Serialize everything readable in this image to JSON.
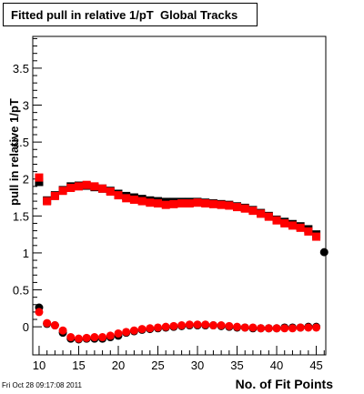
{
  "title": "Fitted pull in relative 1/pT  Global Tracks",
  "timestamp": "Fri Oct 28 09:17:08 2011",
  "chart_data": {
    "type": "scatter",
    "title": "Fitted pull in relative 1/pT  Global Tracks",
    "xlabel": "No. of Fit Points",
    "ylabel": "pull in relative 1/pT",
    "xlim": [
      9.2,
      46.2
    ],
    "ylim": [
      -0.38,
      3.93
    ],
    "x_ticks": [
      10,
      15,
      20,
      25,
      30,
      35,
      40,
      45
    ],
    "y_ticks": [
      0,
      0.5,
      1,
      1.5,
      2,
      2.5,
      3,
      3.5
    ],
    "y_tick_labels": [
      "0",
      "0.5",
      "1",
      "1.5",
      "2",
      "2.5",
      "3",
      "3.5"
    ],
    "grid": false,
    "series": [
      {
        "marker": "square",
        "color": "#000000",
        "x": [
          10,
          11,
          12,
          13,
          14,
          15,
          16,
          17,
          18,
          19,
          20,
          21,
          22,
          23,
          24,
          25,
          26,
          27,
          28,
          29,
          30,
          31,
          32,
          33,
          34,
          35,
          36,
          37,
          38,
          39,
          40,
          41,
          42,
          43,
          44,
          45
        ],
        "values": [
          1.96,
          1.71,
          1.78,
          1.85,
          1.9,
          1.91,
          1.91,
          1.89,
          1.87,
          1.84,
          1.8,
          1.77,
          1.75,
          1.73,
          1.71,
          1.7,
          1.69,
          1.69,
          1.69,
          1.69,
          1.69,
          1.68,
          1.67,
          1.66,
          1.65,
          1.63,
          1.61,
          1.58,
          1.54,
          1.5,
          1.45,
          1.42,
          1.39,
          1.36,
          1.32,
          1.25
        ]
      },
      {
        "marker": "square",
        "color": "#ff0000",
        "x": [
          10,
          11,
          12,
          13,
          14,
          15,
          16,
          17,
          18,
          19,
          20,
          21,
          22,
          23,
          24,
          25,
          26,
          27,
          28,
          29,
          30,
          31,
          32,
          33,
          34,
          35,
          36,
          37,
          38,
          39,
          40,
          41,
          42,
          43,
          44,
          45
        ],
        "values": [
          2.02,
          1.7,
          1.77,
          1.84,
          1.88,
          1.9,
          1.92,
          1.9,
          1.87,
          1.83,
          1.78,
          1.74,
          1.72,
          1.7,
          1.68,
          1.67,
          1.65,
          1.66,
          1.67,
          1.67,
          1.68,
          1.67,
          1.66,
          1.65,
          1.64,
          1.62,
          1.6,
          1.57,
          1.53,
          1.49,
          1.44,
          1.4,
          1.37,
          1.34,
          1.29,
          1.22
        ]
      },
      {
        "marker": "circle",
        "color": "#000000",
        "x": [
          10,
          11,
          12,
          13,
          14,
          15,
          16,
          17,
          18,
          19,
          20,
          21,
          22,
          23,
          24,
          25,
          26,
          27,
          28,
          29,
          30,
          31,
          32,
          33,
          34,
          35,
          36,
          37,
          38,
          39,
          40,
          41,
          42,
          43,
          44,
          45,
          46
        ],
        "values": [
          0.26,
          0.04,
          0.02,
          -0.08,
          -0.16,
          -0.17,
          -0.16,
          -0.16,
          -0.16,
          -0.14,
          -0.12,
          -0.08,
          -0.06,
          -0.04,
          -0.03,
          -0.02,
          -0.01,
          0.0,
          0.01,
          0.02,
          0.02,
          0.02,
          0.02,
          0.01,
          0.0,
          -0.01,
          -0.01,
          -0.02,
          -0.02,
          -0.02,
          -0.02,
          -0.01,
          -0.01,
          -0.01,
          0.0,
          0.0,
          1.01
        ]
      },
      {
        "marker": "circle",
        "color": "#ff0000",
        "x": [
          10,
          11,
          12,
          13,
          14,
          15,
          16,
          17,
          18,
          19,
          20,
          21,
          22,
          23,
          24,
          25,
          26,
          27,
          28,
          29,
          30,
          31,
          32,
          33,
          34,
          35,
          36,
          37,
          38,
          39,
          40,
          41,
          42,
          43,
          44,
          45
        ],
        "values": [
          0.2,
          0.05,
          0.02,
          -0.05,
          -0.14,
          -0.16,
          -0.15,
          -0.14,
          -0.14,
          -0.12,
          -0.09,
          -0.07,
          -0.05,
          -0.03,
          -0.02,
          -0.01,
          0.0,
          0.01,
          0.02,
          0.03,
          0.03,
          0.03,
          0.02,
          0.02,
          0.01,
          0.0,
          -0.01,
          -0.01,
          -0.02,
          -0.02,
          -0.02,
          -0.02,
          -0.02,
          -0.01,
          -0.01,
          -0.01
        ]
      }
    ]
  }
}
